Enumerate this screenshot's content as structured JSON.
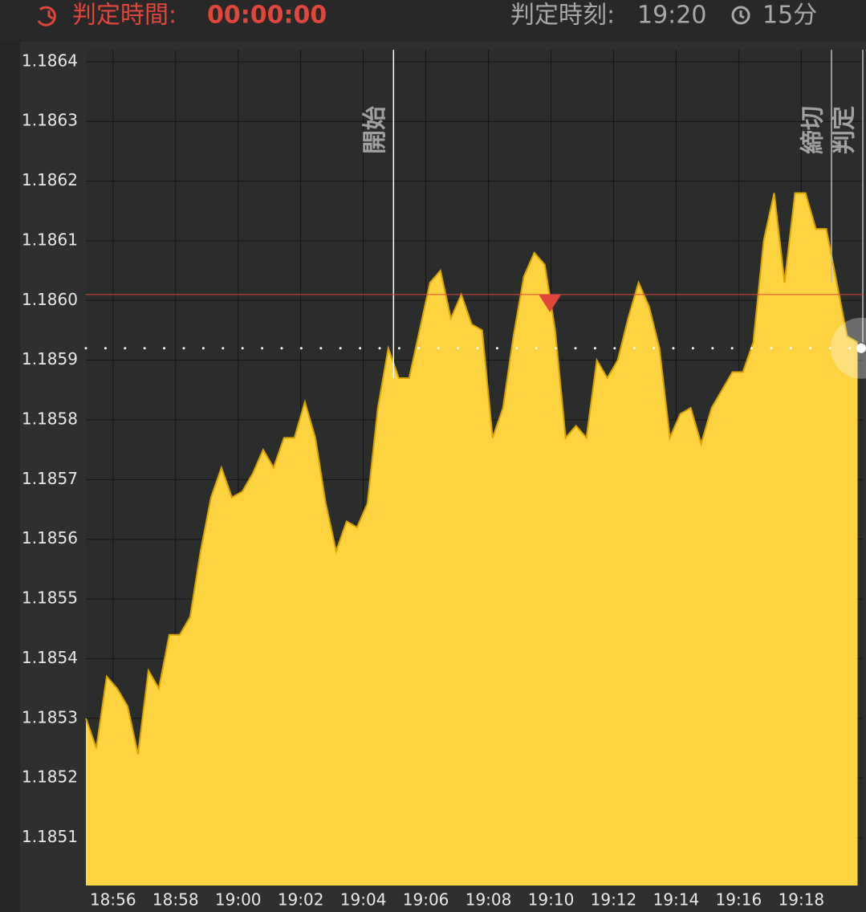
{
  "header": {
    "countdown_label": "判定時間:",
    "countdown": "00:00:00",
    "judge_time_label": "判定時刻:",
    "judge_time": "19:20",
    "duration": "15分"
  },
  "chart_data": {
    "type": "area",
    "values": [
      1.1853,
      1.18525,
      1.18537,
      1.18535,
      1.18532,
      1.18524,
      1.18538,
      1.18535,
      1.18544,
      1.18544,
      1.18547,
      1.18558,
      1.18567,
      1.18572,
      1.18567,
      1.18568,
      1.18571,
      1.18575,
      1.18572,
      1.18577,
      1.18577,
      1.18583,
      1.18577,
      1.18566,
      1.18558,
      1.18563,
      1.18562,
      1.18566,
      1.18582,
      1.18592,
      1.18587,
      1.18587,
      1.18595,
      1.18603,
      1.18605,
      1.18597,
      1.18601,
      1.18596,
      1.18595,
      1.18577,
      1.18582,
      1.18594,
      1.18604,
      1.18608,
      1.18606,
      1.18595,
      1.18577,
      1.18579,
      1.18577,
      1.1859,
      1.18587,
      1.1859,
      1.18597,
      1.18603,
      1.18599,
      1.18592,
      1.18577,
      1.18581,
      1.18582,
      1.18576,
      1.18582,
      1.18585,
      1.18588,
      1.18588,
      1.18593,
      1.1861,
      1.18618,
      1.18603,
      1.18618,
      1.18618,
      1.18612,
      1.18612,
      1.18603,
      1.18594,
      1.18593
    ],
    "color": "#ffd23f",
    "line_color": "#d9a300",
    "xlim": [
      0,
      74.5
    ],
    "xticks": [
      {
        "value": 2.6,
        "label": "18:56"
      },
      {
        "value": 8.6,
        "label": "18:58"
      },
      {
        "value": 14.6,
        "label": "19:00"
      },
      {
        "value": 20.6,
        "label": "19:02"
      },
      {
        "value": 26.6,
        "label": "19:04"
      },
      {
        "value": 32.6,
        "label": "19:06"
      },
      {
        "value": 38.6,
        "label": "19:08"
      },
      {
        "value": 44.6,
        "label": "19:10"
      },
      {
        "value": 50.6,
        "label": "19:12"
      },
      {
        "value": 56.6,
        "label": "19:14"
      },
      {
        "value": 62.6,
        "label": "19:16"
      },
      {
        "value": 68.6,
        "label": "19:18"
      }
    ],
    "ylim": [
      1.18502,
      1.18642
    ],
    "yticks": [
      1.1851,
      1.1852,
      1.1853,
      1.1854,
      1.1855,
      1.1856,
      1.1857,
      1.1858,
      1.1859,
      {
        "value": 1.186,
        "label": "1.1860"
      },
      1.1861,
      1.1862,
      1.1863,
      1.1864
    ],
    "grid": true,
    "entry_price": 1.18601,
    "entry_color": "#e0463a",
    "entry_x": 44.5,
    "current_price": 1.18592,
    "vlines": [
      {
        "label": "開始",
        "x": 29.5
      },
      {
        "label": "締切",
        "x": 71.5
      },
      {
        "label": "判定",
        "x": 74.5
      }
    ]
  }
}
